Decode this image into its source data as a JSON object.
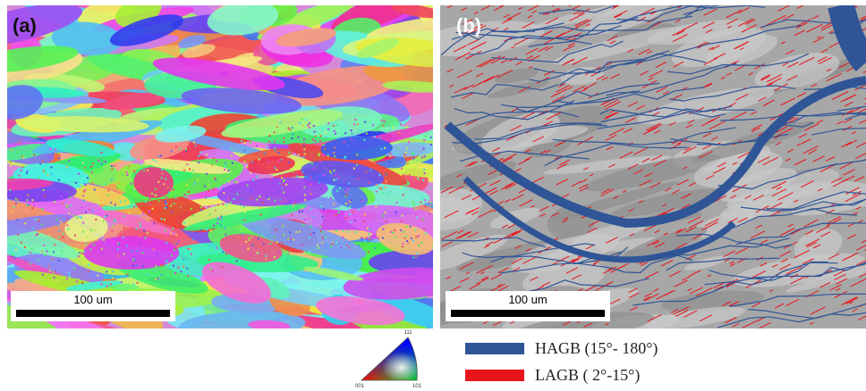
{
  "panels": [
    {
      "label": "(a)",
      "scale_bar": "100 um"
    },
    {
      "label": "(b)",
      "scale_bar": "100 um"
    }
  ],
  "ipf_key": {
    "top": "111",
    "left": "001",
    "right": "101"
  },
  "legend": [
    {
      "label": "HAGB (15°- 180°)",
      "color": "#2f5597"
    },
    {
      "label": "LAGB ( 2°-15°)",
      "color": "#e8141c"
    }
  ]
}
